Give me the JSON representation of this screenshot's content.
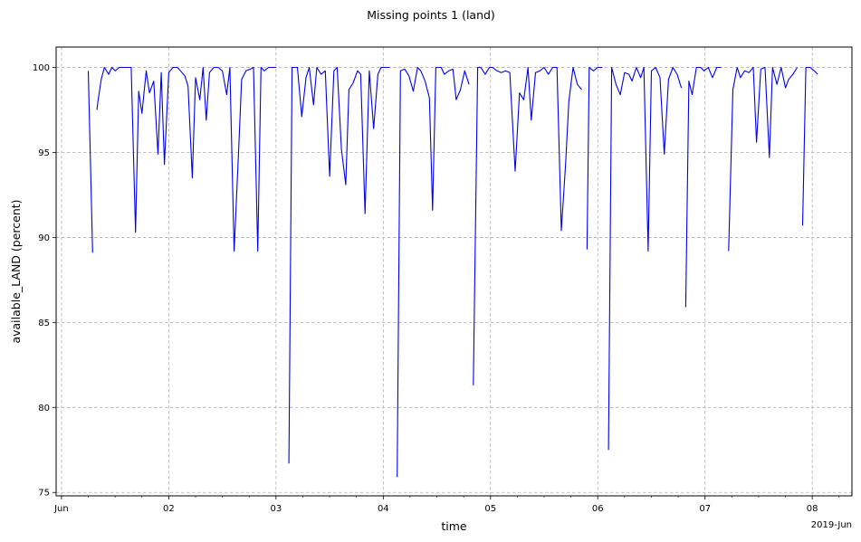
{
  "chart_data": {
    "type": "line",
    "title": "Missing points 1 (land)",
    "xlabel": "time",
    "ylabel": "available_LAND (percent)",
    "x_offset_label": "2019-Jun",
    "xlim": [
      -0.05,
      7.37
    ],
    "ylim": [
      74.8,
      101.2
    ],
    "grid": true,
    "x_ticks": [
      {
        "value": 0,
        "label": "Jun"
      },
      {
        "value": 1,
        "label": "02"
      },
      {
        "value": 2,
        "label": "03"
      },
      {
        "value": 3,
        "label": "04"
      },
      {
        "value": 4,
        "label": "05"
      },
      {
        "value": 5,
        "label": "06"
      },
      {
        "value": 6,
        "label": "07"
      },
      {
        "value": 7,
        "label": "08"
      }
    ],
    "y_ticks": [
      {
        "value": 75,
        "label": "75"
      },
      {
        "value": 80,
        "label": "80"
      },
      {
        "value": 85,
        "label": "85"
      },
      {
        "value": 90,
        "label": "90"
      },
      {
        "value": 95,
        "label": "95"
      },
      {
        "value": 100,
        "label": "100"
      }
    ],
    "series": [
      {
        "color": "#0000ee",
        "segments": [
          [
            [
              0.25,
              99.8
            ],
            [
              0.29,
              89.1
            ]
          ],
          [
            [
              0.33,
              97.5
            ],
            [
              0.34,
              98.0
            ],
            [
              0.37,
              99.3
            ],
            [
              0.4,
              100.0
            ],
            [
              0.44,
              99.6
            ],
            [
              0.47,
              100.0
            ],
            [
              0.5,
              99.8
            ],
            [
              0.54,
              100.0
            ],
            [
              0.58,
              100.0
            ],
            [
              0.62,
              100.0
            ],
            [
              0.65,
              100.0
            ],
            [
              0.69,
              90.3
            ],
            [
              0.72,
              98.6
            ],
            [
              0.75,
              97.3
            ],
            [
              0.79,
              99.8
            ],
            [
              0.82,
              98.5
            ],
            [
              0.86,
              99.2
            ],
            [
              0.9,
              94.9
            ],
            [
              0.93,
              99.7
            ],
            [
              0.96,
              94.3
            ],
            [
              1.0,
              99.7
            ],
            [
              1.04,
              100.0
            ],
            [
              1.08,
              100.0
            ],
            [
              1.11,
              99.8
            ],
            [
              1.15,
              99.5
            ],
            [
              1.18,
              98.9
            ],
            [
              1.22,
              93.5
            ],
            [
              1.25,
              99.4
            ],
            [
              1.29,
              98.1
            ],
            [
              1.32,
              100.0
            ],
            [
              1.35,
              96.9
            ],
            [
              1.38,
              99.7
            ],
            [
              1.42,
              100.0
            ],
            [
              1.46,
              100.0
            ],
            [
              1.5,
              99.8
            ],
            [
              1.54,
              98.4
            ],
            [
              1.57,
              100.0
            ],
            [
              1.61,
              89.2
            ],
            [
              1.65,
              94.9
            ],
            [
              1.68,
              99.3
            ],
            [
              1.72,
              99.8
            ],
            [
              1.76,
              99.9
            ],
            [
              1.79,
              100.0
            ],
            [
              1.83,
              89.2
            ],
            [
              1.86,
              100.0
            ],
            [
              1.89,
              99.8
            ],
            [
              1.93,
              100.0
            ],
            [
              1.96,
              100.0
            ],
            [
              2.0,
              100.0
            ]
          ],
          [
            [
              2.12,
              76.7
            ],
            [
              2.15,
              100.0
            ],
            [
              2.2,
              100.0
            ],
            [
              2.24,
              97.1
            ],
            [
              2.28,
              99.4
            ],
            [
              2.31,
              100.0
            ],
            [
              2.35,
              97.8
            ],
            [
              2.38,
              100.0
            ],
            [
              2.42,
              99.6
            ],
            [
              2.46,
              99.8
            ],
            [
              2.5,
              93.6
            ],
            [
              2.54,
              99.8
            ],
            [
              2.57,
              100.0
            ],
            [
              2.61,
              95.2
            ],
            [
              2.65,
              93.1
            ],
            [
              2.68,
              98.7
            ],
            [
              2.72,
              99.1
            ],
            [
              2.76,
              99.8
            ],
            [
              2.79,
              99.6
            ],
            [
              2.83,
              91.4
            ],
            [
              2.87,
              99.8
            ],
            [
              2.91,
              96.4
            ],
            [
              2.95,
              99.6
            ],
            [
              2.98,
              100.0
            ],
            [
              3.02,
              100.0
            ],
            [
              3.06,
              100.0
            ]
          ],
          [
            [
              3.13,
              75.9
            ],
            [
              3.16,
              99.8
            ],
            [
              3.2,
              99.9
            ],
            [
              3.24,
              99.5
            ],
            [
              3.28,
              98.6
            ],
            [
              3.32,
              100.0
            ],
            [
              3.35,
              99.8
            ],
            [
              3.39,
              99.2
            ],
            [
              3.43,
              98.2
            ],
            [
              3.46,
              91.6
            ],
            [
              3.49,
              100.0
            ],
            [
              3.54,
              100.0
            ],
            [
              3.57,
              99.6
            ],
            [
              3.61,
              99.8
            ],
            [
              3.65,
              99.9
            ],
            [
              3.68,
              98.1
            ],
            [
              3.72,
              98.7
            ],
            [
              3.76,
              99.8
            ],
            [
              3.8,
              99.0
            ]
          ],
          [
            [
              3.84,
              81.3
            ],
            [
              3.88,
              100.0
            ],
            [
              3.91,
              100.0
            ],
            [
              3.95,
              99.6
            ],
            [
              3.99,
              100.0
            ],
            [
              4.02,
              100.0
            ],
            [
              4.06,
              99.8
            ],
            [
              4.1,
              99.7
            ],
            [
              4.14,
              99.8
            ],
            [
              4.18,
              99.7
            ],
            [
              4.23,
              93.9
            ],
            [
              4.27,
              98.5
            ],
            [
              4.31,
              98.1
            ],
            [
              4.35,
              100.0
            ],
            [
              4.38,
              96.9
            ],
            [
              4.42,
              99.7
            ],
            [
              4.46,
              99.8
            ],
            [
              4.5,
              100.0
            ],
            [
              4.54,
              99.6
            ],
            [
              4.58,
              100.0
            ],
            [
              4.62,
              100.0
            ],
            [
              4.66,
              90.4
            ],
            [
              4.7,
              94.3
            ],
            [
              4.73,
              98.0
            ],
            [
              4.77,
              100.0
            ],
            [
              4.81,
              99.0
            ],
            [
              4.85,
              98.7
            ]
          ],
          [
            [
              4.9,
              89.3
            ],
            [
              4.92,
              100.0
            ],
            [
              4.96,
              99.8
            ],
            [
              5.0,
              100.0
            ],
            [
              5.04,
              100.0
            ]
          ],
          [
            [
              5.1,
              77.5
            ],
            [
              5.13,
              100.0
            ],
            [
              5.17,
              99.0
            ],
            [
              5.21,
              98.4
            ],
            [
              5.25,
              99.7
            ],
            [
              5.29,
              99.6
            ],
            [
              5.32,
              99.2
            ],
            [
              5.36,
              100.0
            ],
            [
              5.4,
              99.4
            ],
            [
              5.43,
              100.0
            ],
            [
              5.47,
              89.2
            ],
            [
              5.5,
              99.8
            ],
            [
              5.54,
              100.0
            ],
            [
              5.58,
              99.4
            ],
            [
              5.62,
              94.9
            ],
            [
              5.66,
              99.3
            ],
            [
              5.7,
              100.0
            ],
            [
              5.74,
              99.6
            ],
            [
              5.78,
              98.8
            ]
          ],
          [
            [
              5.82,
              85.9
            ],
            [
              5.85,
              99.2
            ],
            [
              5.88,
              98.4
            ],
            [
              5.92,
              100.0
            ],
            [
              5.96,
              100.0
            ],
            [
              5.99,
              99.8
            ],
            [
              6.03,
              100.0
            ],
            [
              6.07,
              99.4
            ],
            [
              6.11,
              100.0
            ],
            [
              6.15,
              100.0
            ]
          ],
          [
            [
              6.22,
              89.2
            ],
            [
              6.26,
              98.7
            ],
            [
              6.3,
              100.0
            ],
            [
              6.33,
              99.4
            ],
            [
              6.37,
              99.8
            ],
            [
              6.41,
              99.7
            ],
            [
              6.45,
              100.0
            ],
            [
              6.48,
              95.6
            ],
            [
              6.52,
              99.9
            ],
            [
              6.56,
              100.0
            ],
            [
              6.6,
              94.7
            ],
            [
              6.63,
              100.0
            ],
            [
              6.67,
              99.0
            ],
            [
              6.71,
              100.0
            ],
            [
              6.75,
              98.8
            ],
            [
              6.78,
              99.3
            ],
            [
              6.82,
              99.6
            ],
            [
              6.86,
              100.0
            ]
          ],
          [
            [
              6.91,
              90.7
            ],
            [
              6.94,
              100.0
            ],
            [
              6.98,
              100.0
            ],
            [
              7.02,
              99.8
            ],
            [
              7.05,
              99.6
            ]
          ]
        ]
      }
    ]
  }
}
